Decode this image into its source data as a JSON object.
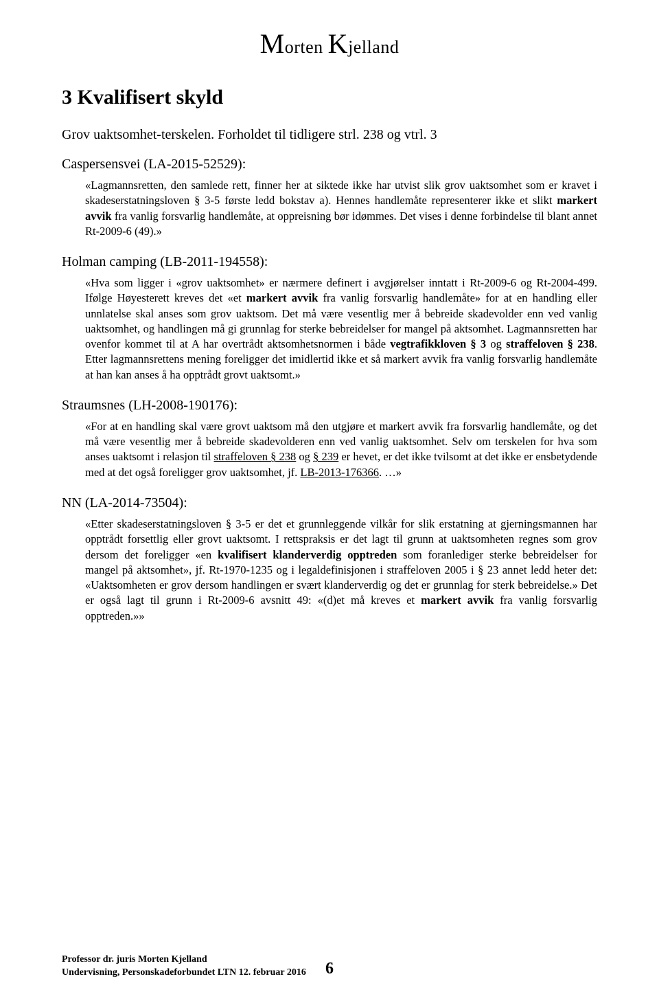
{
  "header": {
    "initial1": "M",
    "rest1": "orten ",
    "initial2": "K",
    "rest2": "jelland"
  },
  "section": {
    "title": "3 Kvalifisert skyld",
    "subtitle": "Grov uaktsomhet-terskelen. Forholdet til tidligere strl. 238 og vtrl. 3"
  },
  "cases": {
    "caspersensvei": {
      "name": "Caspersensvei (LA-2015-52529):",
      "p1a": "«Lagmannsretten, den samlede rett, finner her at siktede ikke har utvist slik grov uaktsomhet som er kravet i skadeserstatningsloven § 3-5 første ledd bokstav a). Hennes handlemåte representerer ikke et slikt ",
      "p1b": "markert avvik",
      "p1c": " fra vanlig forsvarlig handlemåte, at oppreisning bør idømmes. Det vises i denne forbindelse til blant annet Rt-2009-6 (49).»"
    },
    "holman": {
      "name": "Holman camping (LB-2011-194558):",
      "p1a": "«Hva som ligger i «grov uaktsomhet» er nærmere definert i avgjørelser inntatt i Rt-2009-6 og Rt-2004-499. Ifølge Høyesterett kreves det «et ",
      "p1b": "markert avvik",
      "p1c": " fra vanlig forsvarlig handlemåte» for at en handling eller unnlatelse skal anses som grov uaktsom. Det må være vesentlig mer å bebreide skadevolder enn ved vanlig uaktsomhet, og handlingen må gi grunnlag for sterke bebreidelser for mangel på aktsomhet. Lagmannsretten har ovenfor kommet til at A har overtrådt aktsomhetsnormen i både ",
      "p1d": "vegtrafikkloven § 3",
      "p1e": " og ",
      "p1f": "straffeloven § 238",
      "p1g": ". Etter lagmannsrettens mening foreligger det imidlertid ikke et så markert avvik fra vanlig forsvarlig handlemåte at han kan anses å ha opptrådt grovt uaktsomt.»"
    },
    "straumsnes": {
      "name": "Straumsnes (LH-2008-190176):",
      "p1a": "«For at en handling skal være grovt uaktsom må den utgjøre et markert avvik fra forsvarlig handlemåte, og det må være vesentlig mer å bebreide skadevolderen enn ved vanlig uaktsomhet. Selv om terskelen for hva som anses uaktsomt i relasjon til ",
      "p1b": "straffeloven § 238",
      "p1c": " og ",
      "p1d": "§ 239",
      "p1e": " er hevet, er det ikke tvilsomt at det ikke er ensbetydende med at det også foreligger grov uaktsomhet, jf. ",
      "p1f": "LB-2013-176366",
      "p1g": ". …»"
    },
    "nn": {
      "name": "NN (LA-2014-73504):",
      "p1a": "«Etter skadeserstatningsloven § 3-5 er det et grunnleggende vilkår for slik erstatning at gjerningsmannen har opptrådt forsettlig eller grovt uaktsomt. I rettspraksis er det lagt til grunn at uaktsomheten regnes som grov dersom det foreligger «en ",
      "p1b": "kvalifisert klanderverdig opptreden",
      "p1c": " som foranlediger sterke bebreidelser for mangel på aktsomhet», jf. Rt-1970-1235 og i legaldefinisjonen i straffeloven 2005 i § 23 annet ledd heter det: «Uaktsomheten er grov dersom handlingen er svært klanderverdig og det er grunnlag for sterk bebreidelse.» Det er også lagt til grunn i Rt-2009-6 avsnitt 49: «(d)et må kreves et ",
      "p1d": "markert avvik",
      "p1e": " fra vanlig forsvarlig opptreden.»»"
    }
  },
  "footer": {
    "line1": "Professor dr. juris Morten Kjelland",
    "line2": "Undervisning, Personskadeforbundet LTN 12. februar 2016",
    "pagenum": "6"
  }
}
